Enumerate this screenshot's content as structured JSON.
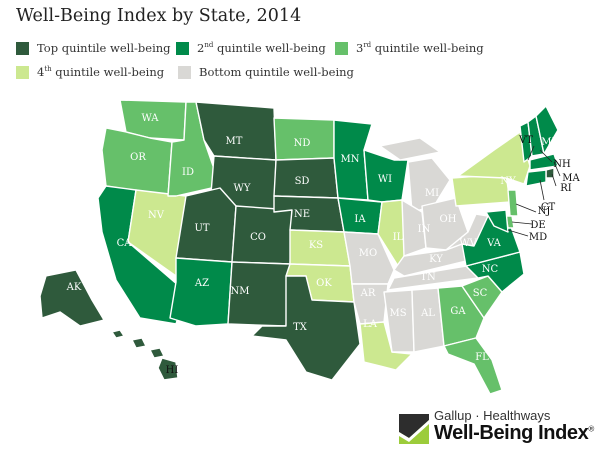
{
  "title": "Well-Being Index by State, 2014",
  "colors": {
    "top": "#2f5a3c",
    "second": "#008a4a",
    "third": "#66c06a",
    "fourth": "#cce890",
    "bottom": "#d9d8d5"
  },
  "legend": [
    {
      "key": "top",
      "pre": "Top quintile well-being",
      "sup": "",
      "post": ""
    },
    {
      "key": "second",
      "pre": "2",
      "sup": "nd",
      "post": " quintile well-being"
    },
    {
      "key": "third",
      "pre": "3",
      "sup": "rd",
      "post": " quintile well-being"
    },
    {
      "key": "fourth",
      "pre": "4",
      "sup": "th",
      "post": " quintile well-being"
    },
    {
      "key": "bottom",
      "pre": "Bottom quintile well-being",
      "sup": "",
      "post": ""
    }
  ],
  "states": {
    "WA": "third",
    "OR": "third",
    "CA": "second",
    "NV": "fourth",
    "ID": "third",
    "MT": "top",
    "WY": "top",
    "UT": "top",
    "CO": "top",
    "AZ": "second",
    "NM": "top",
    "ND": "third",
    "SD": "top",
    "NE": "top",
    "KS": "fourth",
    "OK": "fourth",
    "TX": "top",
    "MN": "second",
    "IA": "second",
    "MO": "bottom",
    "AR": "bottom",
    "LA": "fourth",
    "WI": "second",
    "IL": "fourth",
    "MI": "bottom",
    "IN": "bottom",
    "OH": "bottom",
    "KY": "bottom",
    "TN": "bottom",
    "MS": "bottom",
    "AL": "bottom",
    "GA": "third",
    "FL": "third",
    "SC": "third",
    "NC": "second",
    "VA": "second",
    "WV": "bottom",
    "PA": "fourth",
    "NY": "fourth",
    "VT": "second",
    "NH": "second",
    "ME": "second",
    "MA": "second",
    "RI": "top",
    "CT": "second",
    "NJ": "third",
    "DE": "third",
    "MD": "second",
    "AK": "top",
    "HI": "top"
  },
  "brand": {
    "line1": "Gallup · Healthways",
    "line2": "Well-Being Index"
  }
}
